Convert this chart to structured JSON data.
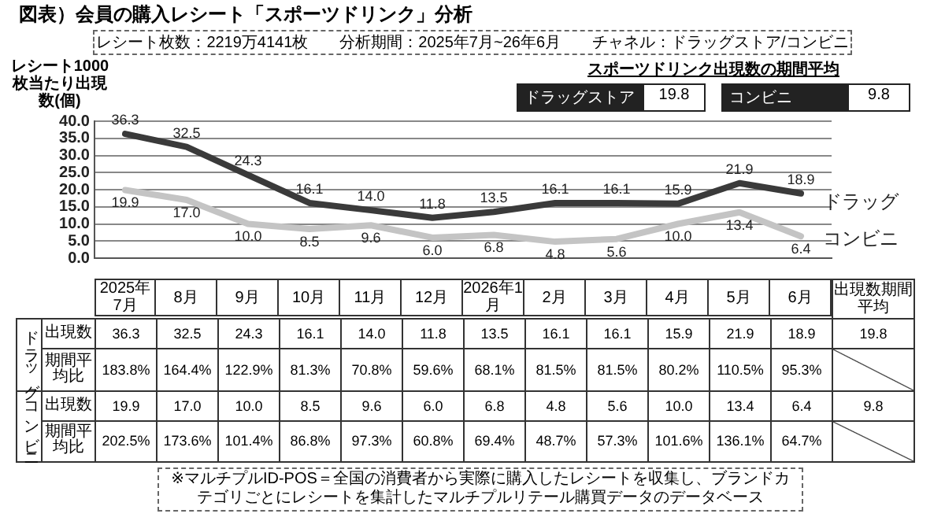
{
  "chart_data": [
    {
      "type": "line",
      "title": "図表）会員の購入レシート「スポーツドリンク」分析",
      "subtitle": "レシート枚数：2219万4141枚　　分析期間：2025年7月~26年6月　　チャネル：ドラッグストア/コンビニ",
      "ylabel": "レシート1000 枚当たり出現数(個)",
      "categories": [
        "2025年7月",
        "8月",
        "9月",
        "10月",
        "11月",
        "12月",
        "2026年1月",
        "2月",
        "3月",
        "4月",
        "5月",
        "6月"
      ],
      "series": [
        {
          "name": "ドラッグ",
          "color": "#3a3a3a",
          "values": [
            36.3,
            32.5,
            24.3,
            16.1,
            14.0,
            11.8,
            13.5,
            16.1,
            16.1,
            15.9,
            21.9,
            18.9
          ],
          "value_labels": [
            "36.3",
            "32.5",
            "24.3",
            "16.1",
            "14.0",
            "11.8",
            "13.5",
            "16.1",
            "16.1",
            "15.9",
            "21.9",
            "18.9"
          ]
        },
        {
          "name": "コンビニ",
          "color": "#c4c4c4",
          "values": [
            19.9,
            17.0,
            10.0,
            8.5,
            9.6,
            6.0,
            6.8,
            4.8,
            5.6,
            10.0,
            13.4,
            6.4
          ],
          "value_labels": [
            "19.9",
            "17.0",
            "10.0",
            "8.5",
            "9.6",
            "6.0",
            "6.8",
            "4.8",
            "5.6",
            "10.0",
            "13.4",
            "6.4"
          ]
        }
      ],
      "ylim": [
        0,
        40
      ],
      "yticks": [
        {
          "value": 0,
          "label": "0.0"
        },
        {
          "value": 5,
          "label": "5.0"
        },
        {
          "value": 10,
          "label": "10.0"
        },
        {
          "value": 15,
          "label": "15.0"
        },
        {
          "value": 20,
          "label": "20.0"
        },
        {
          "value": 25,
          "label": "25.0"
        },
        {
          "value": 30,
          "label": "30.0"
        },
        {
          "value": 35,
          "label": "35.0"
        },
        {
          "value": 40,
          "label": "40.0"
        }
      ],
      "grid": "y",
      "marker": "none",
      "line_style": "solid",
      "annotations": [
        "スポーツドリンク出現数の期間平均",
        "ドラッグストア",
        "19.8",
        "コンビニ",
        "9.8"
      ]
    },
    {
      "type": "other",
      "categories": [
        null,
        null,
        null,
        null,
        null,
        null,
        null,
        null,
        null,
        null,
        null,
        null,
        "出現数期間平均"
      ],
      "y_categories": [
        "出現数",
        "期間平均比",
        "出現数",
        "期間平均比"
      ],
      "y2_categories": [
        "ドラッグ",
        null,
        "コンビニ",
        null
      ],
      "cell_labels": [
        [
          "36.3",
          "32.5",
          "24.3",
          "16.1",
          "14.0",
          "11.8",
          "13.5",
          "16.1",
          "16.1",
          "15.9",
          "21.9",
          "18.9",
          "19.8"
        ],
        [
          "183.8%",
          "164.4%",
          "122.9%",
          "81.3%",
          "70.8%",
          "59.6%",
          "68.1%",
          "81.5%",
          "81.5%",
          "80.2%",
          "110.5%",
          "95.3%",
          null
        ],
        [
          "19.9",
          "17.0",
          "10.0",
          "8.5",
          "9.6",
          "6.0",
          "6.8",
          "4.8",
          "5.6",
          "10.0",
          "13.4",
          "6.4",
          "9.8"
        ],
        [
          "202.5%",
          "173.6%",
          "101.4%",
          "86.8%",
          "97.3%",
          "60.8%",
          "69.4%",
          "48.7%",
          "57.3%",
          "101.6%",
          "136.1%",
          "64.7%",
          null
        ]
      ],
      "annotations": [
        "※マルチプルID-POS＝全国の消費者から実際に購入したレシートを収集し、ブランドカテゴリごとにレシートを集計したマルチプルリテール購買データのデータベース"
      ]
    }
  ]
}
